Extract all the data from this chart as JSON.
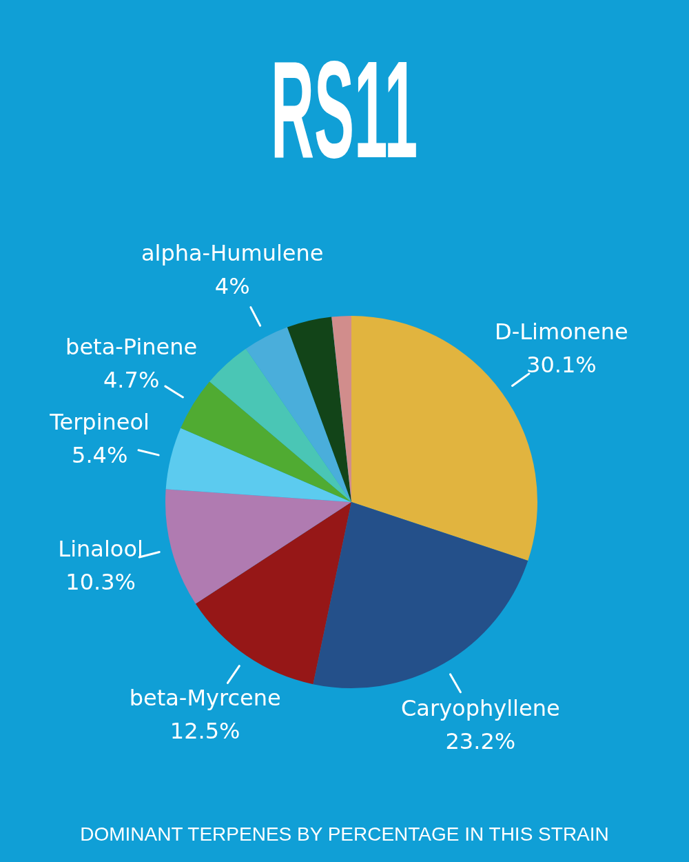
{
  "chart_data": {
    "type": "pie",
    "title": "RS11",
    "categories": [
      "D-Limonene",
      "Caryophyllene",
      "beta-Myrcene",
      "Linalool",
      "Terpineol",
      "beta-Pinene",
      null,
      "alpha-Humulene",
      null,
      null
    ],
    "values": [
      30.1,
      23.2,
      12.5,
      10.3,
      5.4,
      4.7,
      4.2,
      4,
      3.9,
      1.7
    ],
    "colors": [
      "#e1b43f",
      "#24508a",
      "#961717",
      "#b07bb1",
      "#5ccbef",
      "#50ab32",
      "#4ac6b5",
      "#4aaedb",
      "#124418",
      "#d18d8c"
    ],
    "value_labels": [
      "30.1%",
      "23.2%",
      "12.5%",
      "10.3%",
      "5.4%",
      "4.7%",
      null,
      "4%",
      null,
      null
    ],
    "legend": false,
    "annotations": [
      "DOMINANT TERPENES BY PERCENTAGE IN THIS STRAIN"
    ]
  }
}
